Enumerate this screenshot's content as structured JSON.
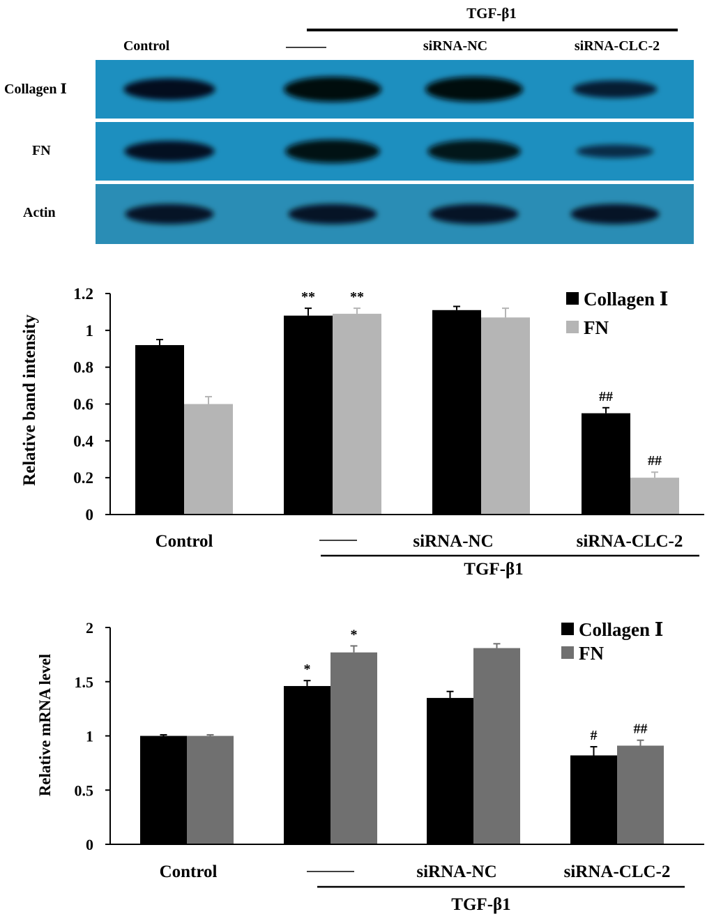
{
  "blot": {
    "treatment_header": "TGF-β1",
    "lane_labels": [
      "Control",
      "——",
      "siRNA-NC",
      "siRNA-CLC-2"
    ],
    "rows": [
      {
        "label": "Collagen Ⅰ",
        "intensity": [
          0.8,
          1.0,
          1.0,
          0.55
        ]
      },
      {
        "label": "FN",
        "intensity": [
          0.75,
          0.9,
          0.85,
          0.3
        ]
      },
      {
        "label": "Actin",
        "intensity": [
          0.7,
          0.7,
          0.7,
          0.7
        ]
      }
    ],
    "membrane_color": "#1d8fbf"
  },
  "chart_data": [
    {
      "type": "bar",
      "ylabel": "Relative band intensity",
      "categories": [
        "Control",
        "——",
        "siRNA-NC",
        "siRNA-CLC-2"
      ],
      "group_label": "TGF-β1",
      "ylim": [
        0,
        1.2
      ],
      "yticks": [
        "0",
        "0.2",
        "0.4",
        "0.6",
        "0.8",
        "1",
        "1.2"
      ],
      "series": [
        {
          "name": "Collagen Ⅰ",
          "color": "#000000",
          "values": [
            0.92,
            1.08,
            1.11,
            0.55
          ],
          "errors": [
            0.03,
            0.04,
            0.02,
            0.03
          ],
          "annotations": [
            "",
            "**",
            "",
            "##"
          ]
        },
        {
          "name": "FN",
          "color": "#b5b5b5",
          "values": [
            0.6,
            1.09,
            1.07,
            0.2
          ],
          "errors": [
            0.04,
            0.03,
            0.05,
            0.03
          ],
          "annotations": [
            "",
            "**",
            "",
            "##"
          ]
        }
      ]
    },
    {
      "type": "bar",
      "ylabel": "Relative mRNA level",
      "categories": [
        "Control",
        "——",
        "siRNA-NC",
        "siRNA-CLC-2"
      ],
      "group_label": "TGF-β1",
      "ylim": [
        0,
        2
      ],
      "yticks": [
        "0",
        "0.5",
        "1",
        "1.5",
        "2"
      ],
      "series": [
        {
          "name": "Collagen Ⅰ",
          "color": "#000000",
          "values": [
            1.0,
            1.46,
            1.35,
            0.82
          ],
          "errors": [
            0.01,
            0.05,
            0.06,
            0.08
          ],
          "annotations": [
            "",
            "*",
            "",
            "#"
          ]
        },
        {
          "name": "FN",
          "color": "#707070",
          "values": [
            1.0,
            1.77,
            1.81,
            0.91
          ],
          "errors": [
            0.01,
            0.06,
            0.04,
            0.05
          ],
          "annotations": [
            "",
            "*",
            "",
            "##"
          ]
        }
      ]
    }
  ]
}
